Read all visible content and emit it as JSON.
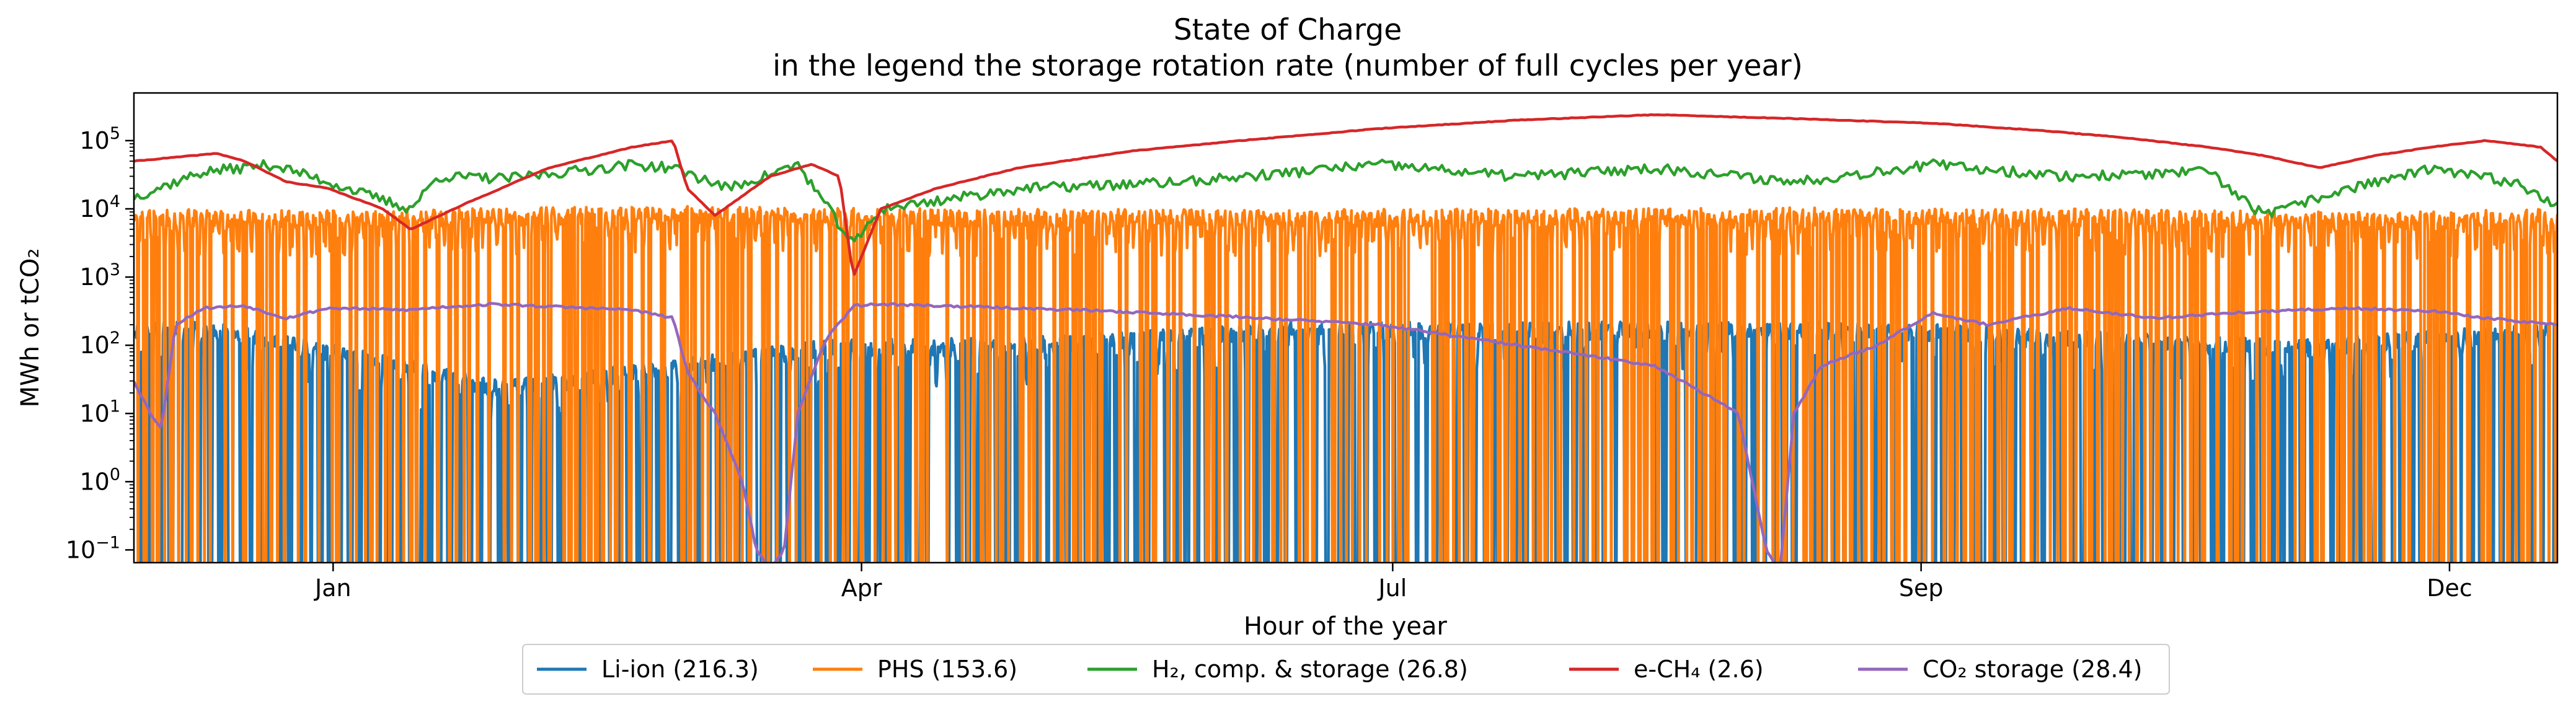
{
  "chart_data": {
    "type": "line",
    "title": "State of Charge",
    "subtitle": "in the legend the storage rotation rate (number of full cycles per year)",
    "xlabel": "Hour of the year",
    "ylabel": "MWh or tCO₂",
    "yscale": "log",
    "xlim": [
      0,
      8760
    ],
    "ylim": [
      0.065,
      500000
    ],
    "x_ticks": [
      {
        "hour": 720,
        "label": "Jan"
      },
      {
        "hour": 2630,
        "label": "Apr"
      },
      {
        "hour": 4550,
        "label": "Jul"
      },
      {
        "hour": 6460,
        "label": "Sep"
      },
      {
        "hour": 8370,
        "label": "Dec"
      }
    ],
    "y_ticks": [
      {
        "value": 0.1,
        "base": "10",
        "exp": "−1"
      },
      {
        "value": 1,
        "base": "10",
        "exp": "0"
      },
      {
        "value": 10,
        "base": "10",
        "exp": "1"
      },
      {
        "value": 100,
        "base": "10",
        "exp": "2"
      },
      {
        "value": 1000,
        "base": "10",
        "exp": "3"
      },
      {
        "value": 10000,
        "base": "10",
        "exp": "4"
      },
      {
        "value": 100000,
        "base": "10",
        "exp": "5"
      }
    ],
    "grid": false,
    "legend_position": "bottom-center",
    "series": [
      {
        "name": "Li-ion (216.3)",
        "color": "#1f77b4",
        "envelope_hours": [
          0,
          300,
          1000,
          1330,
          2500,
          3200,
          4200,
          5400,
          5870,
          6300,
          7800,
          8760
        ],
        "envelope_values": [
          220,
          220,
          60,
          30,
          120,
          130,
          220,
          220,
          220,
          220,
          120,
          220
        ]
      },
      {
        "name": "PHS (153.6)",
        "color": "#ff7f0e",
        "envelope_hours": [
          0,
          500,
          1000,
          2000,
          3000,
          4000,
          5000,
          6000,
          7000,
          8000,
          8760
        ],
        "envelope_values": [
          10000,
          9500,
          10000,
          11000,
          10000,
          9800,
          10000,
          10500,
          10000,
          9000,
          10000
        ]
      },
      {
        "name": "H₂, comp. & storage (26.8)",
        "color": "#2ca02c",
        "envelope_hours": [
          0,
          250,
          500,
          700,
          1000,
          1100,
          1350,
          1800,
          1950,
          2150,
          2400,
          2600,
          2700,
          3200,
          3800,
          4500,
          5000,
          5500,
          6000,
          6500,
          7000,
          7500,
          7700,
          8000,
          8300,
          8600,
          8760
        ],
        "envelope_values": [
          15000,
          35000,
          45000,
          25000,
          10000,
          30000,
          28000,
          45000,
          40000,
          20000,
          45000,
          3000,
          10000,
          20000,
          25000,
          45000,
          30000,
          40000,
          25000,
          45000,
          30000,
          35000,
          8000,
          20000,
          38000,
          25000,
          12000
        ]
      },
      {
        "name": "e-CH₄ (2.6)",
        "color": "#d62728",
        "hours": [
          0,
          300,
          400,
          550,
          700,
          900,
          1000,
          1200,
          1500,
          1800,
          1950,
          2000,
          2100,
          2300,
          2450,
          2550,
          2600,
          2700,
          2900,
          3200,
          3600,
          4000,
          4500,
          5000,
          5500,
          6000,
          6500,
          6900,
          7200,
          7500,
          7700,
          7900,
          8100,
          8300,
          8500,
          8700,
          8760
        ],
        "values": [
          50000,
          65000,
          50000,
          25000,
          20000,
          10000,
          5000,
          12000,
          40000,
          80000,
          100000,
          20000,
          8000,
          30000,
          45000,
          30000,
          1000,
          10000,
          20000,
          40000,
          70000,
          100000,
          150000,
          200000,
          240000,
          210000,
          180000,
          140000,
          110000,
          80000,
          60000,
          40000,
          60000,
          80000,
          100000,
          80000,
          50000
        ]
      },
      {
        "name": "CO₂ storage (28.4)",
        "color": "#9467bd",
        "hours": [
          0,
          60,
          100,
          150,
          250,
          400,
          550,
          700,
          1000,
          1100,
          1300,
          1800,
          1950,
          2000,
          2100,
          2200,
          2250,
          2300,
          2350,
          2400,
          2500,
          2600,
          2700,
          3000,
          3500,
          4000,
          4500,
          5000,
          5500,
          5800,
          5900,
          5950,
          6000,
          6100,
          6300,
          6500,
          6700,
          7000,
          7300,
          7600,
          8000,
          8300,
          8500,
          8760
        ],
        "values": [
          30,
          10,
          6,
          200,
          350,
          380,
          250,
          350,
          330,
          360,
          400,
          330,
          250,
          40,
          10,
          1,
          0.1,
          0.05,
          0.1,
          10,
          120,
          380,
          400,
          370,
          320,
          260,
          200,
          100,
          50,
          10,
          0.1,
          0.05,
          10,
          50,
          100,
          300,
          200,
          350,
          250,
          300,
          350,
          320,
          250,
          200
        ]
      }
    ]
  }
}
